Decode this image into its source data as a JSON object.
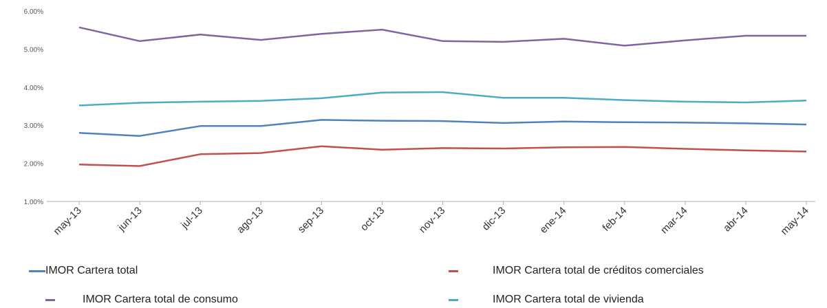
{
  "chart_data": {
    "type": "line",
    "categories": [
      "may-13",
      "jun-13",
      "jul-13",
      "ago-13",
      "sep-13",
      "oct-13",
      "nov-13",
      "dic-13",
      "ene-14",
      "feb-14",
      "mar-14",
      "abr-14",
      "may-14"
    ],
    "series": [
      {
        "name": "IMOR Cartera total",
        "color": "#4f81bd",
        "values": [
          2.8,
          2.72,
          2.98,
          2.98,
          3.14,
          3.12,
          3.11,
          3.06,
          3.1,
          3.08,
          3.07,
          3.05,
          3.02
        ]
      },
      {
        "name": "IMOR Cartera total de créditos comerciales",
        "color": "#c0504d",
        "values": [
          1.97,
          1.93,
          2.24,
          2.27,
          2.45,
          2.36,
          2.4,
          2.39,
          2.42,
          2.43,
          2.38,
          2.34,
          2.31
        ]
      },
      {
        "name": "IMOR Cartera total de consumo",
        "color": "#8064a2",
        "values": [
          5.57,
          5.21,
          5.38,
          5.24,
          5.4,
          5.51,
          5.21,
          5.19,
          5.27,
          5.09,
          5.23,
          5.35,
          5.35
        ]
      },
      {
        "name": "IMOR Cartera total de vivienda",
        "color": "#4bacc6",
        "values": [
          3.52,
          3.59,
          3.62,
          3.64,
          3.71,
          3.86,
          3.87,
          3.72,
          3.72,
          3.66,
          3.62,
          3.6,
          3.65
        ]
      }
    ],
    "y_ticks": [
      "1.00%",
      "2.00%",
      "3.00%",
      "4.00%",
      "5.00%",
      "6.00%"
    ],
    "ylim": [
      1,
      6
    ],
    "grid": false,
    "legend_position": "bottom"
  }
}
